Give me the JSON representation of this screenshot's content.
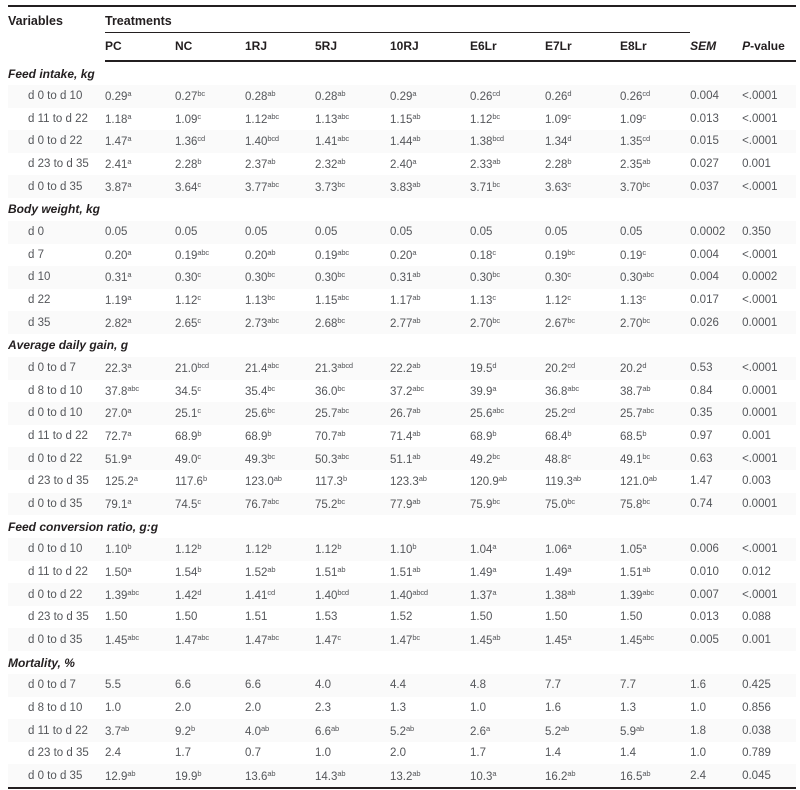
{
  "table": {
    "headers": {
      "variables": "Variables",
      "treatments": "Treatments",
      "sem_italic": "SEM",
      "pvalue_italic": "P",
      "pvalue_rest": "-value"
    },
    "treatment_cols": [
      "PC",
      "NC",
      "1RJ",
      "5RJ",
      "10RJ",
      "E6Lr",
      "E7Lr",
      "E8Lr"
    ],
    "sections": [
      {
        "title": "Feed intake, kg",
        "rows": [
          {
            "label": "d 0 to d 10",
            "values": [
              "0.29^a",
              "0.27^bc",
              "0.28^ab",
              "0.28^ab",
              "0.29^a",
              "0.26^cd",
              "0.26^d",
              "0.26^cd"
            ],
            "sem": "0.004",
            "p": "<.0001"
          },
          {
            "label": "d 11 to d 22",
            "values": [
              "1.18^a",
              "1.09^c",
              "1.12^abc",
              "1.13^abc",
              "1.15^ab",
              "1.12^bc",
              "1.09^c",
              "1.09^c"
            ],
            "sem": "0.013",
            "p": "<.0001"
          },
          {
            "label": "d 0 to d 22",
            "values": [
              "1.47^a",
              "1.36^cd",
              "1.40^bcd",
              "1.41^abc",
              "1.44^ab",
              "1.38^bcd",
              "1.34^d",
              "1.35^cd"
            ],
            "sem": "0.015",
            "p": "<.0001"
          },
          {
            "label": "d 23 to d 35",
            "values": [
              "2.41^a",
              "2.28^b",
              "2.37^ab",
              "2.32^ab",
              "2.40^a",
              "2.33^ab",
              "2.28^b",
              "2.35^ab"
            ],
            "sem": "0.027",
            "p": "0.001"
          },
          {
            "label": "d 0 to d 35",
            "values": [
              "3.87^a",
              "3.64^c",
              "3.77^abc",
              "3.73^bc",
              "3.83^ab",
              "3.71^bc",
              "3.63^c",
              "3.70^bc"
            ],
            "sem": "0.037",
            "p": "<.0001"
          }
        ]
      },
      {
        "title": "Body weight, kg",
        "rows": [
          {
            "label": "d 0",
            "values": [
              "0.05",
              "0.05",
              "0.05",
              "0.05",
              "0.05",
              "0.05",
              "0.05",
              "0.05"
            ],
            "sem": "0.0002",
            "p": "0.350"
          },
          {
            "label": "d 7",
            "values": [
              "0.20^a",
              "0.19^abc",
              "0.20^ab",
              "0.19^abc",
              "0.20^a",
              "0.18^c",
              "0.19^bc",
              "0.19^c"
            ],
            "sem": "0.004",
            "p": "<.0001"
          },
          {
            "label": "d 10",
            "values": [
              "0.31^a",
              "0.30^c",
              "0.30^bc",
              "0.30^bc",
              "0.31^ab",
              "0.30^bc",
              "0.30^c",
              "0.30^abc"
            ],
            "sem": "0.004",
            "p": "0.0002"
          },
          {
            "label": "d 22",
            "values": [
              "1.19^a",
              "1.12^c",
              "1.13^bc",
              "1.15^abc",
              "1.17^ab",
              "1.13^c",
              "1.12^c",
              "1.13^c"
            ],
            "sem": "0.017",
            "p": "<.0001"
          },
          {
            "label": "d 35",
            "values": [
              "2.82^a",
              "2.65^c",
              "2.73^abc",
              "2.68^bc",
              "2.77^ab",
              "2.70^bc",
              "2.67^bc",
              "2.70^bc"
            ],
            "sem": "0.026",
            "p": "0.0001"
          }
        ]
      },
      {
        "title": "Average daily gain, g",
        "rows": [
          {
            "label": "d 0 to d 7",
            "values": [
              "22.3^a",
              "21.0^bcd",
              "21.4^abc",
              "21.3^abcd",
              "22.2^ab",
              "19.5^d",
              "20.2^cd",
              "20.2^d"
            ],
            "sem": "0.53",
            "p": "<.0001"
          },
          {
            "label": "d 8 to d 10",
            "values": [
              "37.8^abc",
              "34.5^c",
              "35.4^bc",
              "36.0^bc",
              "37.2^abc",
              "39.9^a",
              "36.8^abc",
              "38.7^ab"
            ],
            "sem": "0.84",
            "p": "0.0001"
          },
          {
            "label": "d 0 to d 10",
            "values": [
              "27.0^a",
              "25.1^c",
              "25.6^bc",
              "25.7^abc",
              "26.7^ab",
              "25.6^abc",
              "25.2^cd",
              "25.7^abc"
            ],
            "sem": "0.35",
            "p": "0.0001"
          },
          {
            "label": "d 11 to d 22",
            "values": [
              "72.7^a",
              "68.9^b",
              "68.9^b",
              "70.7^ab",
              "71.4^ab",
              "68.9^b",
              "68.4^b",
              "68.5^b"
            ],
            "sem": "0.97",
            "p": "0.001"
          },
          {
            "label": "d 0 to d 22",
            "values": [
              "51.9^a",
              "49.0^c",
              "49.3^bc",
              "50.3^abc",
              "51.1^ab",
              "49.2^bc",
              "48.8^c",
              "49.1^bc"
            ],
            "sem": "0.63",
            "p": "<.0001"
          },
          {
            "label": "d 23 to d 35",
            "values": [
              "125.2^a",
              "117.6^b",
              "123.0^ab",
              "117.3^b",
              "123.3^ab",
              "120.9^ab",
              "119.3^ab",
              "121.0^ab"
            ],
            "sem": "1.47",
            "p": "0.003"
          },
          {
            "label": "d 0 to d 35",
            "values": [
              "79.1^a",
              "74.5^c",
              "76.7^abc",
              "75.2^bc",
              "77.9^ab",
              "75.9^bc",
              "75.0^bc",
              "75.8^bc"
            ],
            "sem": "0.74",
            "p": "0.0001"
          }
        ]
      },
      {
        "title": "Feed conversion ratio, g:g",
        "rows": [
          {
            "label": "d 0 to d 10",
            "values": [
              "1.10^b",
              "1.12^b",
              "1.12^b",
              "1.12^b",
              "1.10^b",
              "1.04^a",
              "1.06^a",
              "1.05^a"
            ],
            "sem": "0.006",
            "p": "<.0001"
          },
          {
            "label": "d 11 to d 22",
            "values": [
              "1.50^a",
              "1.54^b",
              "1.52^ab",
              "1.51^ab",
              "1.51^ab",
              "1.49^a",
              "1.49^a",
              "1.51^ab"
            ],
            "sem": "0.010",
            "p": "0.012"
          },
          {
            "label": "d 0 to d 22",
            "values": [
              "1.39^abc",
              "1.42^d",
              "1.41^cd",
              "1.40^bcd",
              "1.40^abcd",
              "1.37^a",
              "1.38^ab",
              "1.39^abc"
            ],
            "sem": "0.007",
            "p": "<.0001"
          },
          {
            "label": "d 23 to d 35",
            "values": [
              "1.50",
              "1.50",
              "1.51",
              "1.53",
              "1.52",
              "1.50",
              "1.50",
              "1.50"
            ],
            "sem": "0.013",
            "p": "0.088"
          },
          {
            "label": "d 0 to d 35",
            "values": [
              "1.45^abc",
              "1.47^abc",
              "1.47^abc",
              "1.47^c",
              "1.47^bc",
              "1.45^ab",
              "1.45^a",
              "1.45^abc"
            ],
            "sem": "0.005",
            "p": "0.001"
          }
        ]
      },
      {
        "title": "Mortality, %",
        "rows": [
          {
            "label": "d 0 to d 7",
            "values": [
              "5.5",
              "6.6",
              "6.6",
              "4.0",
              "4.4",
              "4.8",
              "7.7",
              "7.7"
            ],
            "sem": "1.6",
            "p": "0.425"
          },
          {
            "label": "d 8 to d 10",
            "values": [
              "1.0",
              "2.0",
              "2.0",
              "2.3",
              "1.3",
              "1.0",
              "1.6",
              "1.3"
            ],
            "sem": "1.0",
            "p": "0.856"
          },
          {
            "label": "d 11 to d 22",
            "values": [
              "3.7^ab",
              "9.2^b",
              "4.0^ab",
              "6.6^ab",
              "5.2^ab",
              "2.6^a",
              "5.2^ab",
              "5.9^ab"
            ],
            "sem": "1.8",
            "p": "0.038"
          },
          {
            "label": "d 23 to d 35",
            "values": [
              "2.4",
              "1.7",
              "0.7",
              "1.0",
              "2.0",
              "1.7",
              "1.4",
              "1.4"
            ],
            "sem": "1.0",
            "p": "0.789"
          },
          {
            "label": "d 0 to d 35",
            "values": [
              "12.9^ab",
              "19.9^b",
              "13.6^ab",
              "14.3^ab",
              "13.2^ab",
              "10.3^a",
              "16.2^ab",
              "16.5^ab"
            ],
            "sem": "2.4",
            "p": "0.045"
          }
        ]
      }
    ]
  }
}
